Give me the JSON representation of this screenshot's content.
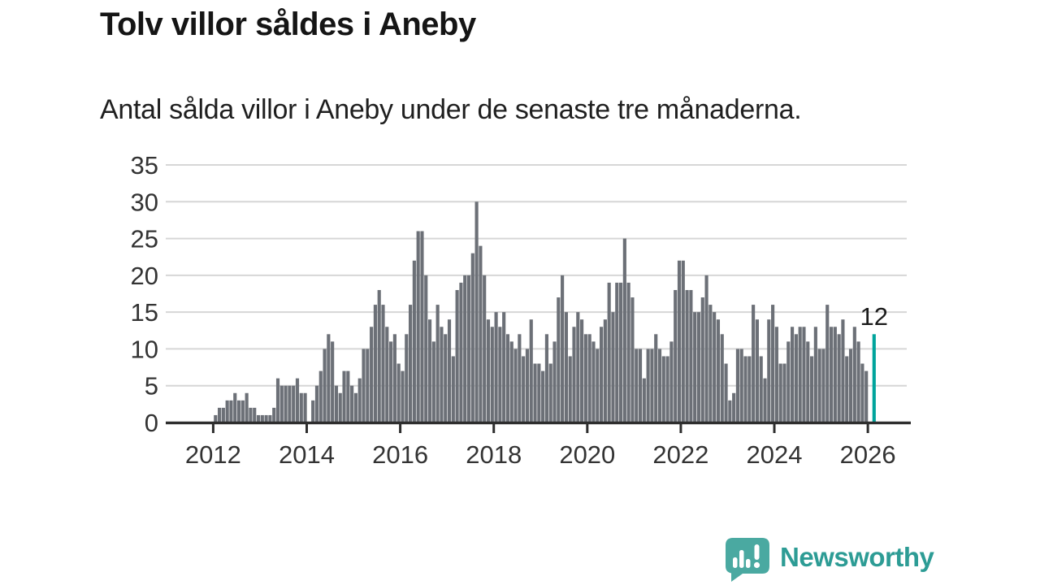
{
  "title": "Tolv villor såldes i Aneby",
  "subtitle": "Antal sålda villor i Aneby under de senaste tre månaderna.",
  "annotation": {
    "label": "12"
  },
  "logo": {
    "name": "Newsworthy"
  },
  "colors": {
    "bar": "#6c7077",
    "highlight": "#00a49c",
    "grid": "#d6d6d6",
    "axis": "#2e2e2e",
    "axis_text": "#333333",
    "title_text": "#151515",
    "annotation_text": "#1a1a1a",
    "logo_icon": "#4aa9a1",
    "logo_text": "#2d9c95"
  },
  "chart_data": {
    "type": "bar",
    "title": "Tolv villor såldes i Aneby",
    "xlabel": "",
    "ylabel": "",
    "x_start": "2012-01",
    "x_interval": "month",
    "ylim": [
      0,
      35
    ],
    "yticks": [
      0,
      5,
      10,
      15,
      20,
      25,
      30,
      35
    ],
    "xtick_years": [
      2012,
      2014,
      2016,
      2018,
      2020,
      2022,
      2024,
      2026
    ],
    "grid": true,
    "legend": false,
    "highlight_index": 169,
    "highlight_value": 12,
    "values": [
      1,
      2,
      2,
      3,
      3,
      4,
      3,
      3,
      4,
      2,
      2,
      1,
      1,
      1,
      1,
      2,
      6,
      5,
      5,
      5,
      5,
      6,
      4,
      4,
      0,
      3,
      5,
      7,
      10,
      12,
      11,
      5,
      4,
      7,
      7,
      5,
      4,
      6,
      10,
      10,
      13,
      16,
      18,
      16,
      13,
      11,
      12,
      8,
      7,
      12,
      16,
      22,
      26,
      26,
      20,
      14,
      11,
      16,
      13,
      12,
      14,
      9,
      18,
      19,
      20,
      20,
      23,
      30,
      24,
      20,
      14,
      13,
      15,
      13,
      15,
      12,
      11,
      10,
      12,
      9,
      10,
      14,
      8,
      8,
      7,
      12,
      8,
      11,
      17,
      20,
      15,
      9,
      13,
      15,
      14,
      12,
      12,
      11,
      10,
      13,
      14,
      19,
      15,
      19,
      19,
      25,
      19,
      17,
      10,
      10,
      6,
      10,
      10,
      12,
      10,
      9,
      9,
      11,
      18,
      22,
      22,
      18,
      18,
      15,
      15,
      17,
      20,
      16,
      15,
      14,
      12,
      8,
      3,
      4,
      10,
      10,
      9,
      9,
      16,
      14,
      9,
      6,
      14,
      16,
      13,
      8,
      8,
      11,
      13,
      12,
      13,
      13,
      11,
      9,
      13,
      10,
      10,
      16,
      13,
      13,
      12,
      14,
      9,
      10,
      13,
      11,
      8,
      7,
      0,
      12
    ]
  }
}
